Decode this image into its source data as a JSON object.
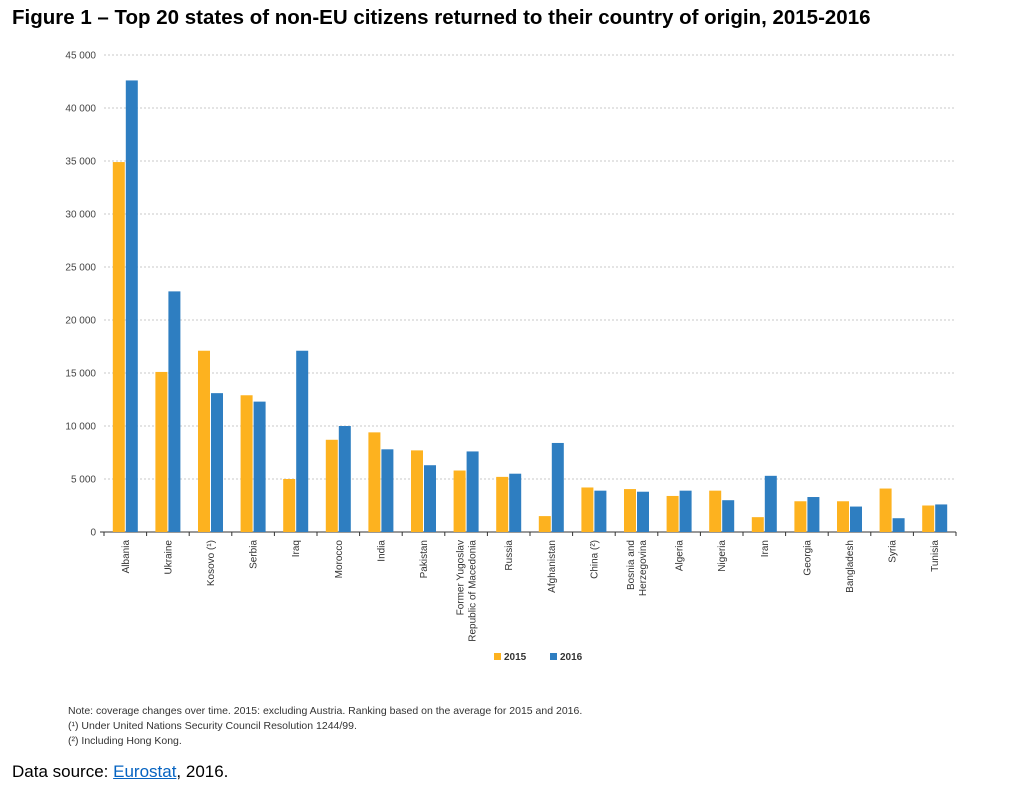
{
  "chart_data": {
    "type": "bar",
    "title": "Figure 1 – Top 20 states of non-EU citizens returned to their country of origin, 2015-2016",
    "categories": [
      "Albania",
      "Ukraine",
      "Kosovo (¹)",
      "Serbia",
      "Iraq",
      "Morocco",
      "India",
      "Pakistan",
      "Former Yugoslav Republic of Macedonia",
      "Russia",
      "Afghanistan",
      "China (²)",
      "Bosnia and Herzegovina",
      "Algeria",
      "Nigeria",
      "Iran",
      "Georgia",
      "Bangladesh",
      "Syria",
      "Tunisia"
    ],
    "series": [
      {
        "name": "2015",
        "color": "#FDB21F",
        "values": [
          34900,
          15100,
          17100,
          12900,
          5000,
          8700,
          9400,
          7700,
          5800,
          5200,
          1500,
          4200,
          4050,
          3400,
          3900,
          1400,
          2900,
          2900,
          4100,
          2500
        ]
      },
      {
        "name": "2016",
        "color": "#2E7EC1",
        "values": [
          42600,
          22700,
          13100,
          12300,
          17100,
          10000,
          7800,
          6300,
          7600,
          5500,
          8400,
          3900,
          3800,
          3900,
          3000,
          5300,
          3300,
          2400,
          1300,
          2600
        ]
      }
    ],
    "xlabel": "",
    "ylabel": "",
    "ylim": [
      0,
      45000
    ],
    "yticks": [
      "0",
      "5 000",
      "10 000",
      "15 000",
      "20 000",
      "25 000",
      "30 000",
      "35 000",
      "40 000",
      "45 000"
    ],
    "grid": true,
    "legend_position": "bottom"
  },
  "notes": [
    "Note: coverage changes over time. 2015: excluding Austria. Ranking based on the average for 2015 and 2016.",
    "(¹) Under United Nations Security Council Resolution 1244/99.",
    "(²) Including Hong Kong."
  ],
  "source": {
    "prefix": "Data source: ",
    "link": "Eurostat",
    "suffix": ", 2016."
  }
}
